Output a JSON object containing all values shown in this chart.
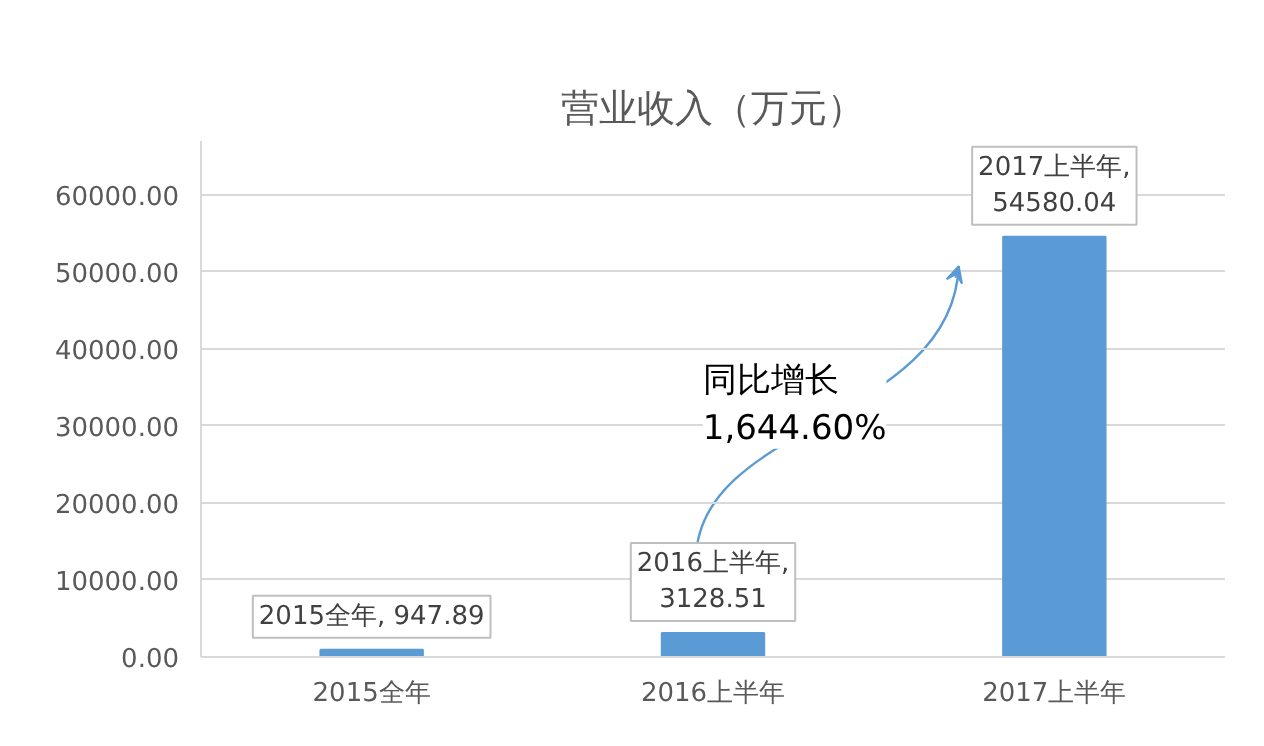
{
  "chart_data": {
    "type": "bar",
    "title": "营业收入（万元）",
    "categories": [
      "2015全年",
      "2016上半年",
      "2017上半年"
    ],
    "values": [
      947.89,
      3128.51,
      54580.04
    ],
    "color": "#5b9bd5",
    "value_labels": [
      "2015全年, 947.89",
      "2016上半年,\n3128.51",
      "2017上半年,\n54580.04"
    ],
    "annotations": [
      "同比增长\n1,644.60%"
    ],
    "ylim": [
      0,
      67000
    ],
    "yticks": [
      {
        "value": 0,
        "label": "0.00"
      },
      {
        "value": 10000,
        "label": "10000.00"
      },
      {
        "value": 20000,
        "label": "20000.00"
      },
      {
        "value": 30000,
        "label": "30000.00"
      },
      {
        "value": 40000,
        "label": "40000.00"
      },
      {
        "value": 50000,
        "label": "50000.00"
      },
      {
        "value": 60000,
        "label": "60000.00"
      }
    ],
    "grid": "y"
  }
}
